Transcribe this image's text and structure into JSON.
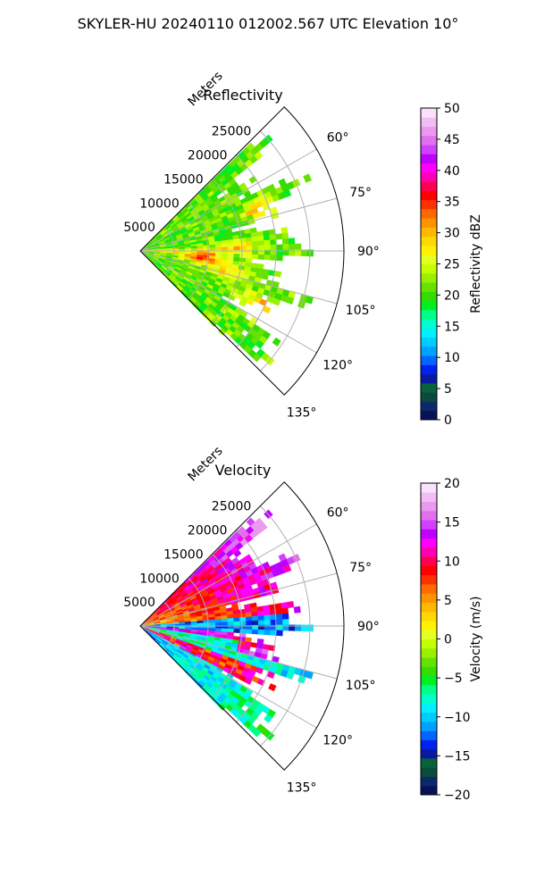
{
  "figure": {
    "suptitle": "SKYLER-HU  20240110  012002.567 UTC Elevation 10°"
  },
  "chart_data": [
    {
      "type": "heatmap",
      "projection": "polar-sector",
      "title": "Reflectivity",
      "r_axis_label": "Meters",
      "r_ticks": [
        5000,
        10000,
        15000,
        20000,
        25000
      ],
      "r_tick_labels": [
        "5000",
        "10000",
        "15000",
        "20000",
        "25000"
      ],
      "r_max": 30000,
      "theta_ticks": [
        60,
        75,
        90,
        105,
        120,
        135
      ],
      "theta_tick_labels": [
        "60°",
        "75°",
        "90°",
        "105°",
        "120°",
        "135°"
      ],
      "theta_range": [
        45,
        135
      ],
      "grid": true,
      "field": "reflectivity",
      "colorbar": {
        "label": "Reflectivity dBZ",
        "vmin": 0,
        "vmax": 50,
        "ticks": [
          0,
          5,
          10,
          15,
          20,
          25,
          30,
          35,
          40,
          45,
          50
        ],
        "tick_labels": [
          "0",
          "5",
          "10",
          "15",
          "20",
          "25",
          "30",
          "35",
          "40",
          "45",
          "50"
        ],
        "colors": [
          "#08115a",
          "#0a2a6a",
          "#0b4b3d",
          "#08633a",
          "#0a1aa0",
          "#0022ee",
          "#0066ff",
          "#00a2ff",
          "#00ccff",
          "#00f0ff",
          "#00ffcc",
          "#00ff88",
          "#00ee22",
          "#33dd00",
          "#66e200",
          "#99f000",
          "#c4ff00",
          "#e6ff22",
          "#fff200",
          "#ffd800",
          "#ffb800",
          "#ff9200",
          "#ff6a00",
          "#ff3000",
          "#ff0000",
          "#ff0050",
          "#ff00b0",
          "#ff00ff",
          "#c000ff",
          "#d040ff",
          "#e070f0",
          "#ea98f0",
          "#f2bcf4",
          "#f9e0fb"
        ]
      }
    },
    {
      "type": "heatmap",
      "projection": "polar-sector",
      "title": "Velocity",
      "r_axis_label": "Meters",
      "r_ticks": [
        5000,
        10000,
        15000,
        20000,
        25000
      ],
      "r_tick_labels": [
        "5000",
        "10000",
        "15000",
        "20000",
        "25000"
      ],
      "r_max": 30000,
      "theta_ticks": [
        60,
        75,
        90,
        105,
        120,
        135
      ],
      "theta_tick_labels": [
        "60°",
        "75°",
        "90°",
        "105°",
        "120°",
        "135°"
      ],
      "theta_range": [
        45,
        135
      ],
      "grid": true,
      "field": "velocity",
      "colorbar": {
        "label": "Velocity (m/s)",
        "vmin": -20,
        "vmax": 20,
        "ticks": [
          -20,
          -15,
          -10,
          -5,
          0,
          5,
          10,
          15,
          20
        ],
        "tick_labels": [
          "−20",
          "−15",
          "−10",
          "−5",
          "0",
          "5",
          "10",
          "15",
          "20"
        ],
        "colors": [
          "#08115a",
          "#0a2a6a",
          "#0b4b3d",
          "#08633a",
          "#0a1aa0",
          "#0022ee",
          "#0066ff",
          "#00a2ff",
          "#00ccff",
          "#00f0ff",
          "#00ffcc",
          "#00ff88",
          "#00ee22",
          "#33dd00",
          "#66e200",
          "#99f000",
          "#c4ff00",
          "#e6ff22",
          "#fff200",
          "#ffd800",
          "#ffb800",
          "#ff9200",
          "#ff6a00",
          "#ff3000",
          "#ff0000",
          "#ff0050",
          "#ff00b0",
          "#ff00ff",
          "#c000ff",
          "#d040ff",
          "#e070f0",
          "#ea98f0",
          "#f2bcf4",
          "#f9e0fb"
        ]
      }
    }
  ]
}
